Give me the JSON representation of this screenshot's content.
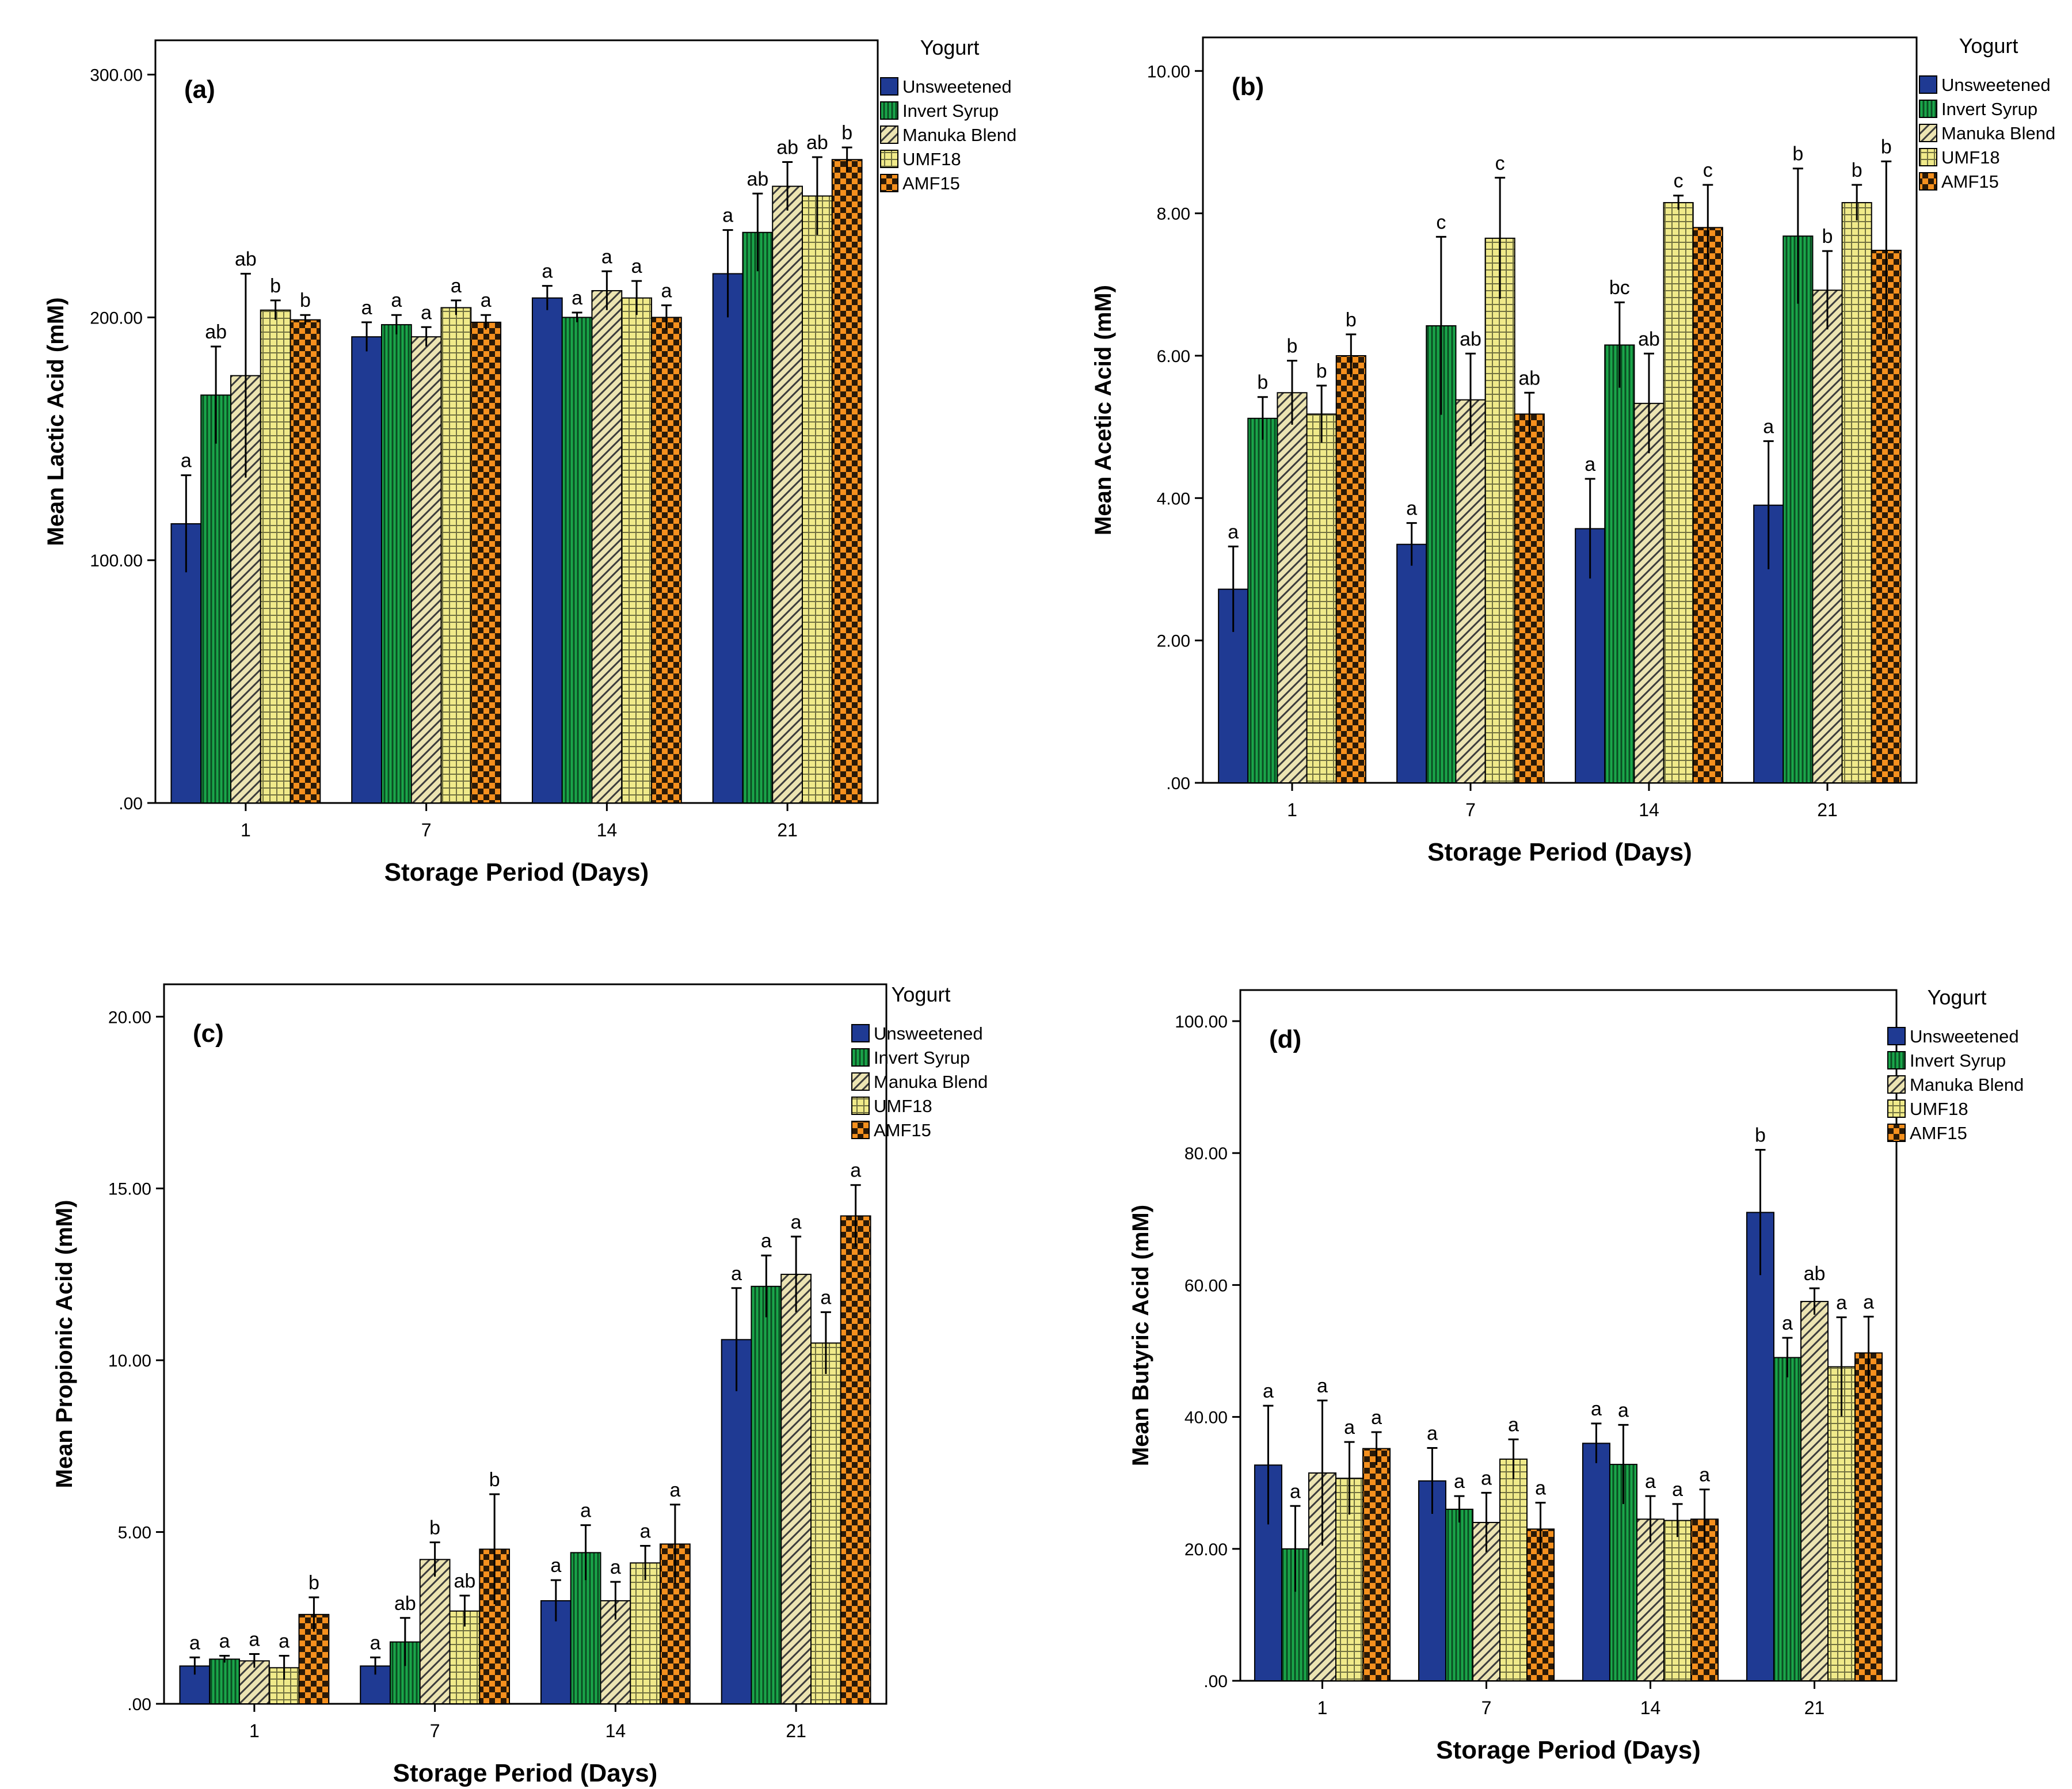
{
  "figure": {
    "legend_title": "Yogurt",
    "xlabel": "Storage Period (Days)",
    "categories": [
      "1",
      "7",
      "14",
      "21"
    ],
    "series_names": [
      "Unsweetened",
      "Invert Syrup",
      "Manuka Blend",
      "UMF18",
      "AMF15"
    ],
    "colors": {
      "Unsweetened": "#1f3a93",
      "Invert Syrup": "#1aa64a",
      "Manuka Blend": "#ece4b2",
      "UMF18": "#f0ea8a",
      "AMF15": "#f5901e",
      "frame": "#000000"
    }
  },
  "chart_data": [
    {
      "panel": "(a)",
      "type": "bar",
      "title": "(a)",
      "xlabel": "Storage Period (Days)",
      "ylabel": "Mean Lactic Acid (mM)",
      "ylim": [
        0,
        300
      ],
      "yticks": [
        0,
        100,
        200,
        300
      ],
      "ytick_labels": [
        ".00",
        "100.00",
        "200.00",
        "300.00"
      ],
      "categories": [
        "1",
        "7",
        "14",
        "21"
      ],
      "series": [
        {
          "name": "Unsweetened",
          "values": [
            115,
            192,
            208,
            218
          ],
          "errors": [
            20,
            6,
            5,
            18
          ],
          "letters": [
            "a",
            "a",
            "a",
            "a"
          ]
        },
        {
          "name": "Invert Syrup",
          "values": [
            168,
            197,
            200,
            235
          ],
          "errors": [
            20,
            4,
            2,
            16
          ],
          "letters": [
            "ab",
            "a",
            "a",
            "ab"
          ]
        },
        {
          "name": "Manuka Blend",
          "values": [
            176,
            192,
            211,
            254
          ],
          "errors": [
            42,
            4,
            8,
            10
          ],
          "letters": [
            "ab",
            "a",
            "a",
            "ab"
          ]
        },
        {
          "name": "UMF18",
          "values": [
            203,
            204,
            208,
            250
          ],
          "errors": [
            4,
            3,
            7,
            16
          ],
          "letters": [
            "b",
            "a",
            "a",
            "ab"
          ]
        },
        {
          "name": "AMF15",
          "values": [
            199,
            198,
            200,
            265
          ],
          "errors": [
            2,
            3,
            5,
            5
          ],
          "letters": [
            "b",
            "a",
            "a",
            "b"
          ]
        }
      ],
      "legend_position": "top-right, outside plot"
    },
    {
      "panel": "(b)",
      "type": "bar",
      "title": "(b)",
      "xlabel": "Storage Period (Days)",
      "ylabel": "Mean Acetic Acid (mM)",
      "ylim": [
        0,
        10
      ],
      "yticks": [
        0,
        2,
        4,
        6,
        8,
        10
      ],
      "ytick_labels": [
        ".00",
        "2.00",
        "4.00",
        "6.00",
        "8.00",
        "10.00"
      ],
      "categories": [
        "1",
        "7",
        "14",
        "21"
      ],
      "series": [
        {
          "name": "Unsweetened",
          "values": [
            2.72,
            3.35,
            3.57,
            3.9
          ],
          "errors": [
            0.6,
            0.3,
            0.7,
            0.9
          ],
          "letters": [
            "a",
            "a",
            "a",
            "a"
          ]
        },
        {
          "name": "Invert Syrup",
          "values": [
            5.12,
            6.42,
            6.15,
            7.68
          ],
          "errors": [
            0.3,
            1.25,
            0.6,
            0.95
          ],
          "letters": [
            "b",
            "c",
            "bc",
            "b"
          ]
        },
        {
          "name": "Manuka Blend",
          "values": [
            5.48,
            5.38,
            5.33,
            6.92
          ],
          "errors": [
            0.45,
            0.65,
            0.7,
            0.55
          ],
          "letters": [
            "b",
            "ab",
            "ab",
            "b"
          ]
        },
        {
          "name": "UMF18",
          "values": [
            5.18,
            7.65,
            8.15,
            8.15
          ],
          "errors": [
            0.4,
            0.85,
            0.1,
            0.25
          ],
          "letters": [
            "b",
            "c",
            "c",
            "b"
          ]
        },
        {
          "name": "AMF15",
          "values": [
            6.0,
            5.18,
            7.8,
            7.48
          ],
          "errors": [
            0.3,
            0.3,
            0.6,
            1.25
          ],
          "letters": [
            "b",
            "ab",
            "c",
            "b"
          ]
        }
      ],
      "legend_position": "top-right, outside plot"
    },
    {
      "panel": "(c)",
      "type": "bar",
      "title": "(c)",
      "xlabel": "Storage Period (Days)",
      "ylabel": "Mean Propionic  Acid (mM)",
      "ylim": [
        0,
        20
      ],
      "yticks": [
        0,
        5,
        10,
        15,
        20
      ],
      "ytick_labels": [
        ".00",
        "5.00",
        "10.00",
        "15.00",
        "20.00"
      ],
      "categories": [
        "1",
        "7",
        "14",
        "21"
      ],
      "series": [
        {
          "name": "Unsweetened",
          "values": [
            1.1,
            1.1,
            3.0,
            10.6
          ],
          "errors": [
            0.25,
            0.25,
            0.6,
            1.5
          ],
          "letters": [
            "a",
            "a",
            "a",
            "a"
          ]
        },
        {
          "name": "Invert Syrup",
          "values": [
            1.3,
            1.8,
            4.4,
            12.15
          ],
          "errors": [
            0.1,
            0.7,
            0.8,
            0.9
          ],
          "letters": [
            "a",
            "ab",
            "a",
            "a"
          ]
        },
        {
          "name": "Manuka Blend",
          "values": [
            1.25,
            4.2,
            3.0,
            12.5
          ],
          "errors": [
            0.2,
            0.5,
            0.55,
            1.1
          ],
          "letters": [
            "a",
            "b",
            "a",
            "a"
          ]
        },
        {
          "name": "UMF18",
          "values": [
            1.05,
            2.7,
            4.1,
            10.5
          ],
          "errors": [
            0.35,
            0.45,
            0.5,
            0.9
          ],
          "letters": [
            "a",
            "ab",
            "a",
            "a"
          ]
        },
        {
          "name": "AMF15",
          "values": [
            2.6,
            4.5,
            4.65,
            14.2
          ],
          "errors": [
            0.5,
            1.6,
            1.15,
            0.9
          ],
          "letters": [
            "b",
            "b",
            "a",
            "a"
          ]
        }
      ],
      "legend_position": "top-right, outside plot"
    },
    {
      "panel": "(d)",
      "type": "bar",
      "title": "(d)",
      "xlabel": "Storage Period (Days)",
      "ylabel": "Mean Butyric Acid (mM)",
      "ylim": [
        0,
        100
      ],
      "yticks": [
        0,
        20,
        40,
        60,
        80,
        100
      ],
      "ytick_labels": [
        ".00",
        "20.00",
        "40.00",
        "60.00",
        "80.00",
        "100.00"
      ],
      "categories": [
        "1",
        "7",
        "14",
        "21"
      ],
      "series": [
        {
          "name": "Unsweetened",
          "values": [
            32.7,
            30.3,
            36.0,
            71.0
          ],
          "errors": [
            9,
            5,
            3,
            9.5
          ],
          "letters": [
            "a",
            "a",
            "a",
            "b"
          ]
        },
        {
          "name": "Invert Syrup",
          "values": [
            20.0,
            26.0,
            32.8,
            49.0
          ],
          "errors": [
            6.5,
            2,
            6,
            3
          ],
          "letters": [
            "a",
            "a",
            "a",
            "a"
          ]
        },
        {
          "name": "Manuka Blend",
          "values": [
            31.5,
            24.0,
            24.5,
            57.5
          ],
          "errors": [
            11,
            4.5,
            3.5,
            2
          ],
          "letters": [
            "a",
            "a",
            "a",
            "ab"
          ]
        },
        {
          "name": "UMF18",
          "values": [
            30.7,
            33.6,
            24.3,
            47.6
          ],
          "errors": [
            5.5,
            3,
            2.5,
            7.5
          ],
          "letters": [
            "a",
            "a",
            "a",
            "a"
          ]
        },
        {
          "name": "AMF15",
          "values": [
            35.2,
            23.0,
            24.5,
            49.7
          ],
          "errors": [
            2.5,
            4,
            4.5,
            5.5
          ],
          "letters": [
            "a",
            "a",
            "a",
            "a"
          ]
        }
      ],
      "legend_position": "top-right, outside plot"
    }
  ]
}
